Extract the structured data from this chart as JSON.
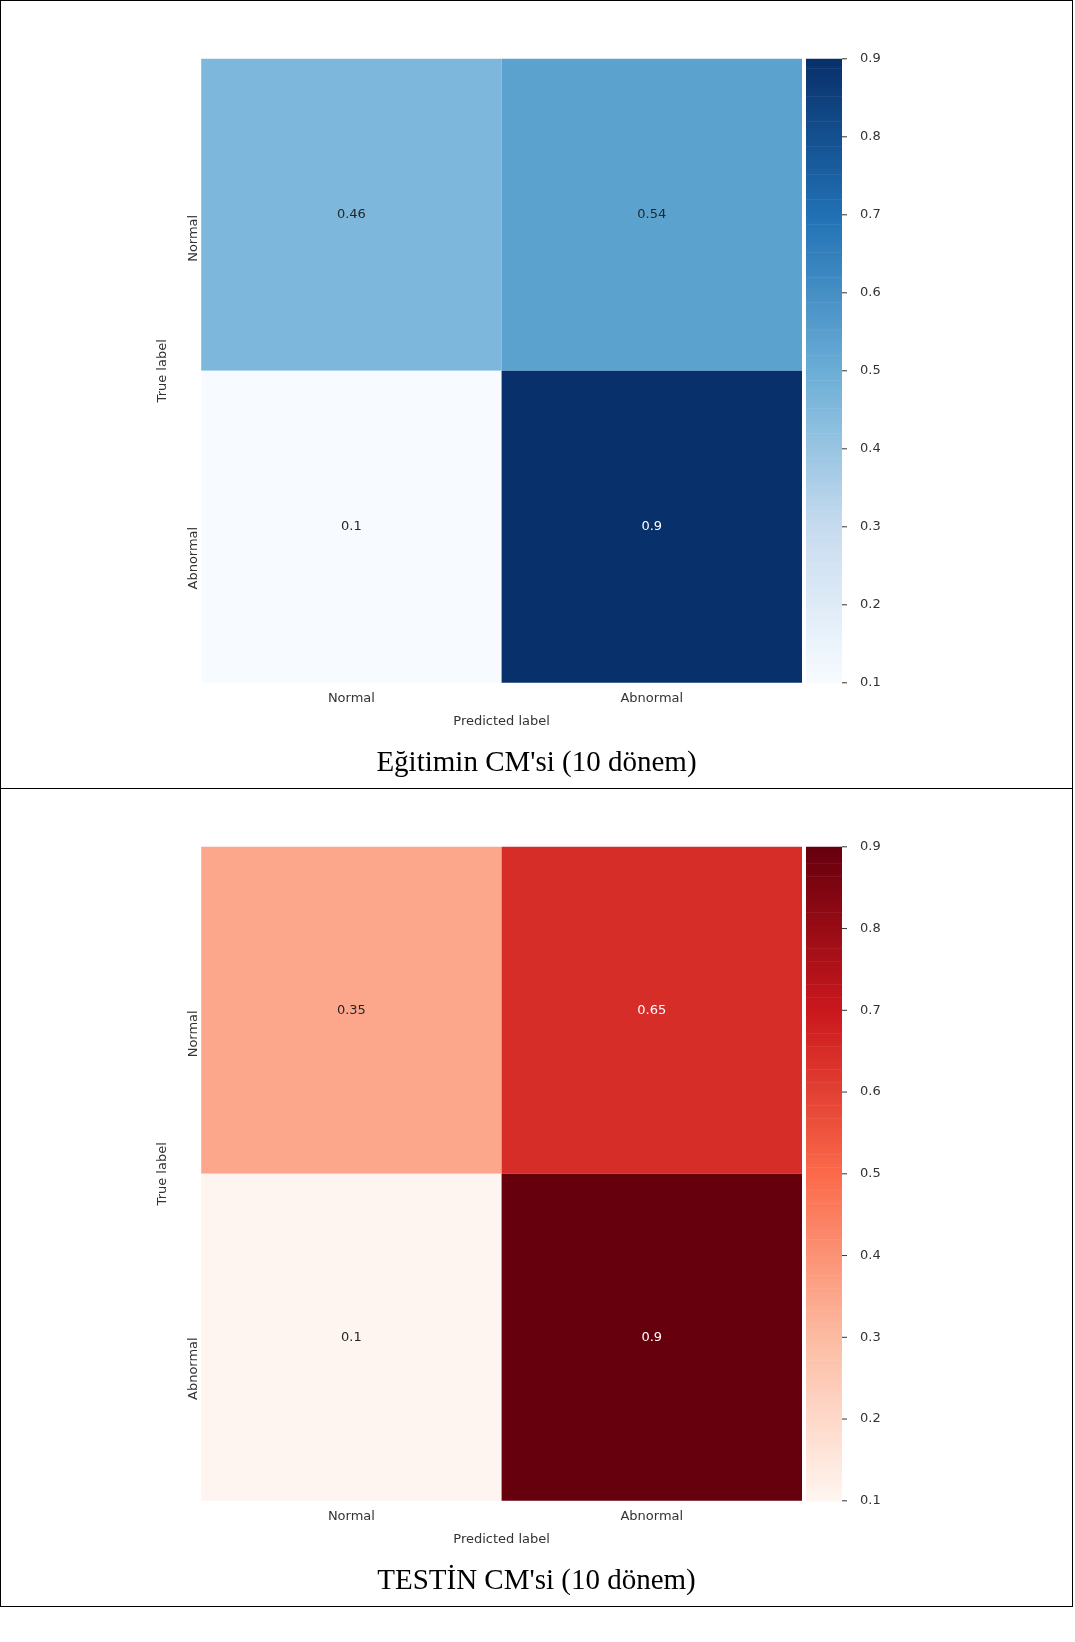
{
  "chart_data": [
    {
      "type": "heatmap",
      "title": "Eğitimin CM'si (10 dönem)",
      "xlabel": "Predicted label",
      "ylabel": "True label",
      "categories": [
        "Normal",
        "Abnormal"
      ],
      "y_categories": [
        "Normal",
        "Abnormal"
      ],
      "cells": [
        [
          0.46,
          0.54
        ],
        [
          0.1,
          0.9
        ]
      ],
      "colors": [
        "#f7fbff",
        "#c6dbef",
        "#6baed6",
        "#2171b5",
        "#08306b"
      ],
      "clim": [
        0.1,
        0.9
      ],
      "cticks": [
        0.1,
        0.2,
        0.3,
        0.4,
        0.5,
        0.6,
        0.7,
        0.8,
        0.9
      ],
      "data_labels": true
    },
    {
      "type": "heatmap",
      "title": "TESTİN CM'si (10 dönem)",
      "xlabel": "Predicted label",
      "ylabel": "True label",
      "categories": [
        "Normal",
        "Abnormal"
      ],
      "y_categories": [
        "Normal",
        "Abnormal"
      ],
      "cells": [
        [
          0.35,
          0.65
        ],
        [
          0.1,
          0.9
        ]
      ],
      "colors": [
        "#fff5f0",
        "#fcbba1",
        "#fb6a4a",
        "#cb181d",
        "#67000d"
      ],
      "clim": [
        0.1,
        0.9
      ],
      "cticks": [
        0.1,
        0.2,
        0.3,
        0.4,
        0.5,
        0.6,
        0.7,
        0.8,
        0.9
      ],
      "data_labels": true
    }
  ]
}
